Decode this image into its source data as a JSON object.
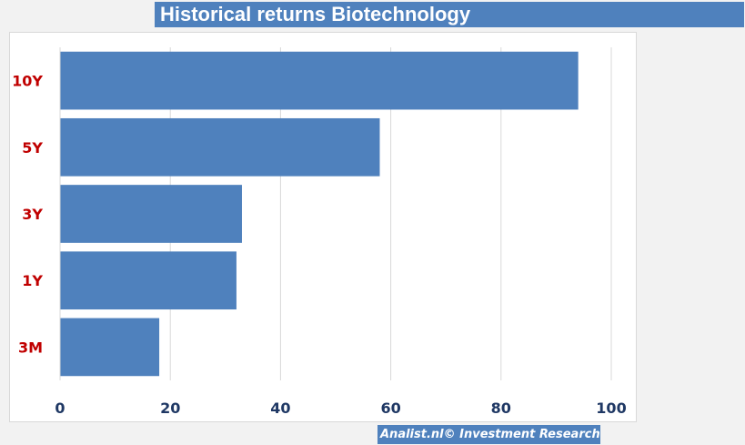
{
  "title": "Historical returns Biotechnology",
  "credit": "Analist.nl© Investment Research",
  "colors": {
    "bar": "#4f81bd",
    "category_label": "#c00000",
    "tick_label": "#1f3864",
    "grid": "#d9d9d9"
  },
  "chart_data": {
    "type": "bar",
    "orientation": "horizontal",
    "categories": [
      "10Y",
      "5Y",
      "3Y",
      "1Y",
      "3M"
    ],
    "values": [
      94,
      58,
      33,
      32,
      18
    ],
    "xlim": [
      0,
      100
    ],
    "xticks": [
      0,
      20,
      40,
      60,
      80,
      100
    ],
    "grid": true,
    "legend": "none"
  }
}
